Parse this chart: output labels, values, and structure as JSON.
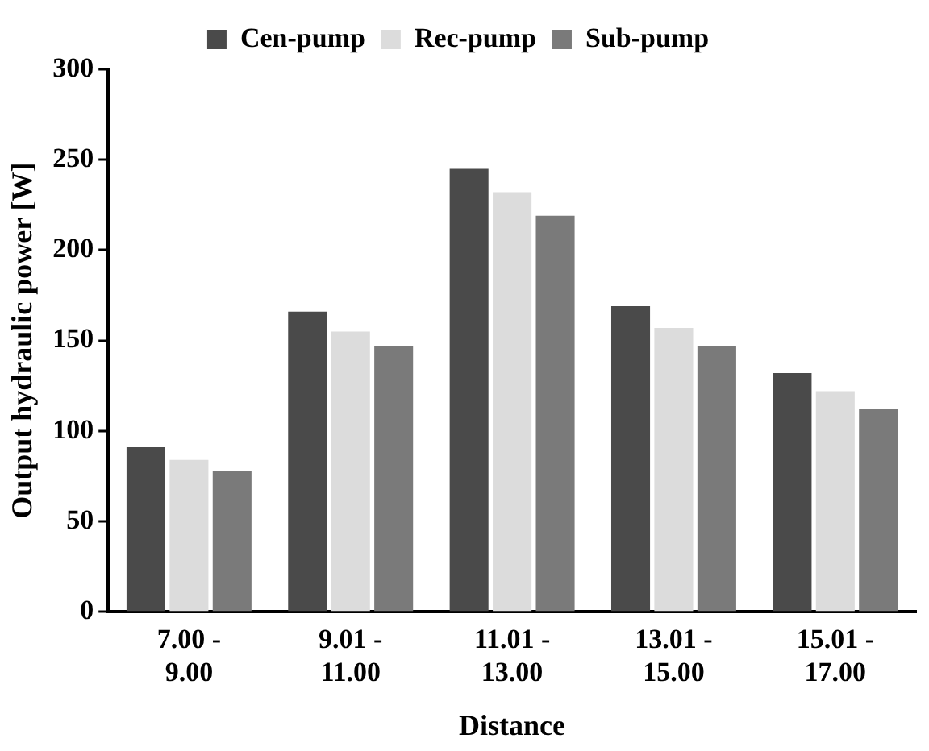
{
  "chart_data": {
    "type": "bar",
    "xlabel": "Distance",
    "ylabel": "Output hydraulic power [W]",
    "categories": [
      "7.00 - 9.00",
      "9.01 - 11.00",
      "11.01 - 13.00",
      "13.01 - 15.00",
      "15.01 - 17.00"
    ],
    "series": [
      {
        "name": "Cen-pump",
        "color": "#4a4a4a",
        "values": [
          91,
          166,
          245,
          169,
          132
        ]
      },
      {
        "name": "Rec-pump",
        "color": "#dcdcdc",
        "values": [
          84,
          155,
          232,
          157,
          122
        ]
      },
      {
        "name": "Sub-pump",
        "color": "#7a7a7a",
        "values": [
          78,
          147,
          219,
          147,
          112
        ]
      }
    ],
    "ylim": [
      0,
      300
    ],
    "yticks": [
      0,
      50,
      100,
      150,
      200,
      250,
      300
    ],
    "grid": false,
    "legend": "top"
  }
}
